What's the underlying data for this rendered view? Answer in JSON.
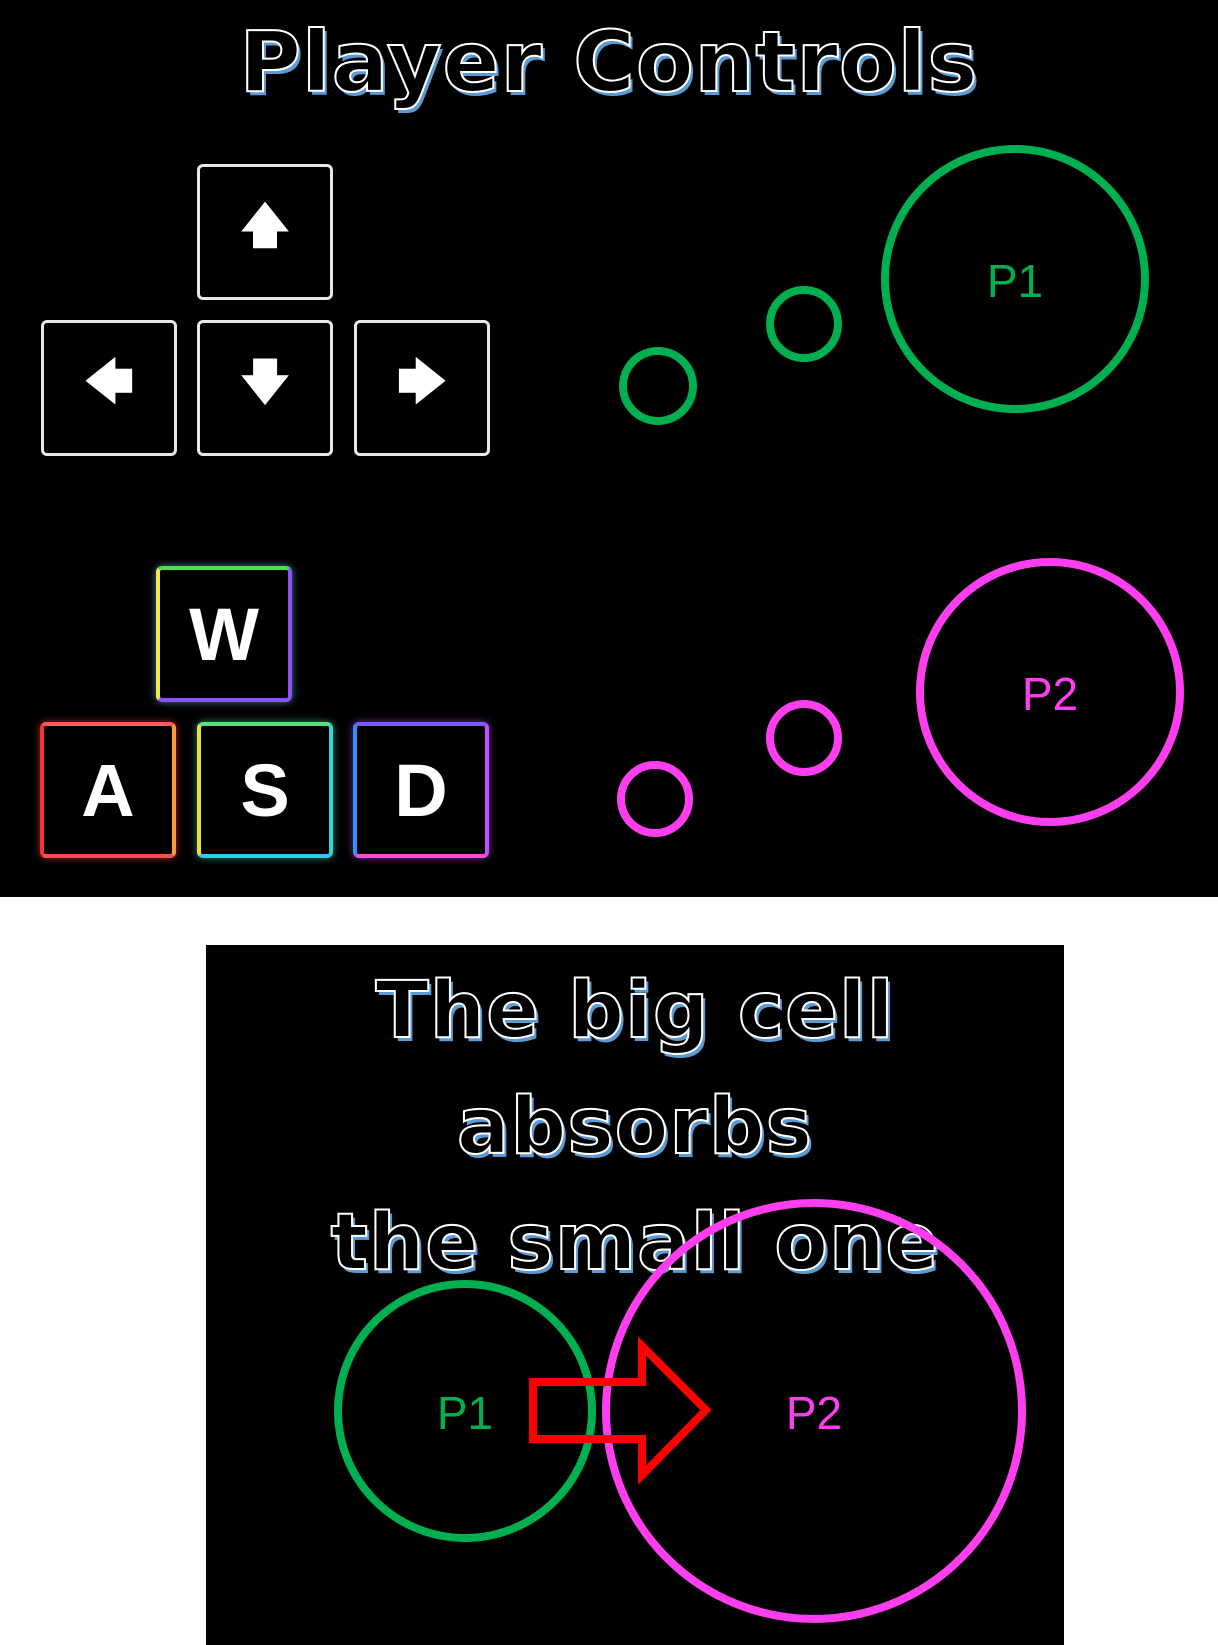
{
  "colors": {
    "p1": "#00b050",
    "p2": "#ff3ef0",
    "arrow": "#ff0000",
    "key_outline": "#e8e8e8",
    "title_shadow": "#5b9bd5"
  },
  "controls_panel": {
    "title": "Player Controls",
    "arrow_keys": {
      "up": "🡅",
      "left": "🡄",
      "down": "🡇",
      "right": "🡆",
      "up_icon": "arrow-up-icon",
      "left_icon": "arrow-left-icon",
      "down_icon": "arrow-down-icon",
      "right_icon": "arrow-right-icon"
    },
    "wasd_keys": {
      "w": "W",
      "a": "A",
      "s": "S",
      "d": "D"
    },
    "player1": {
      "label": "P1"
    },
    "player2": {
      "label": "P2"
    }
  },
  "absorb_panel": {
    "title_line1": "The big cell absorbs",
    "title_line2": "the small one",
    "small_cell": {
      "label": "P1"
    },
    "big_cell": {
      "label": "P2"
    },
    "arrow_icon": "arrow-right-icon"
  }
}
